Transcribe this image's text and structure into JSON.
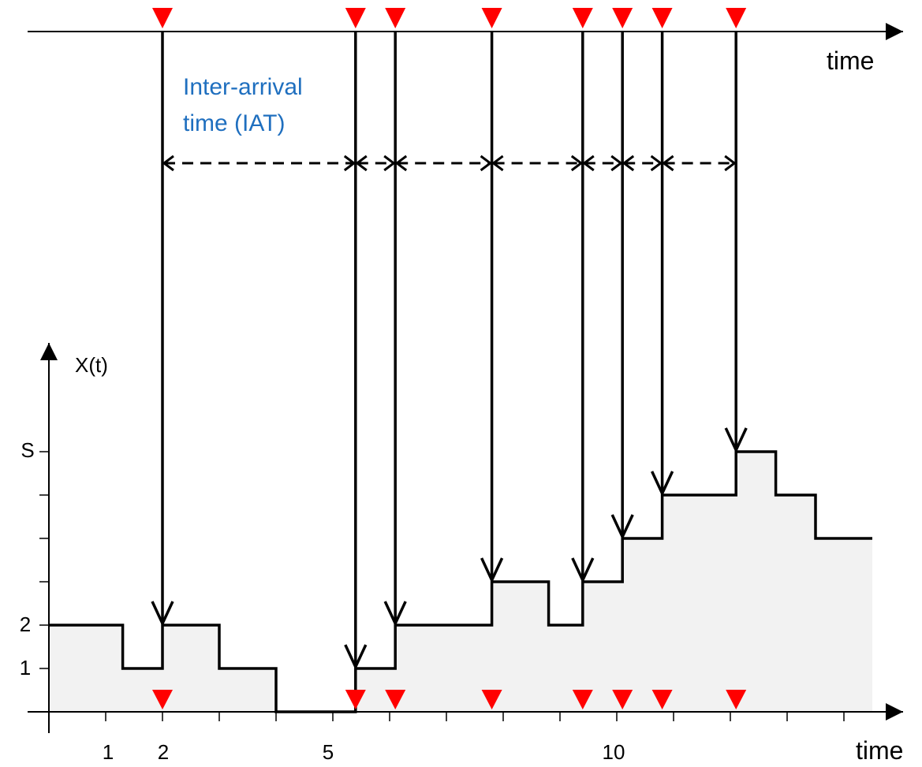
{
  "colors": {
    "marker": "#ff0000",
    "area_fill": "#f2f2f2",
    "annotation": "#1f6fbf",
    "line": "#000000"
  },
  "top_axis": {
    "label": "time"
  },
  "bottom_axis": {
    "label": "time",
    "tick_labels": [
      "1",
      "2",
      "5",
      "10"
    ]
  },
  "y_axis": {
    "label": "X(t)",
    "tick_labels": [
      "1",
      "2",
      "S"
    ]
  },
  "annotation": {
    "line1": "Inter-arrival",
    "line2": "time (IAT)"
  },
  "chart_data": {
    "type": "step",
    "arrival_times": [
      2.0,
      5.4,
      6.1,
      7.8,
      9.4,
      10.1,
      10.8,
      12.1
    ],
    "step_x": [
      0,
      1.3,
      2.0,
      3.0,
      4.0,
      5.4,
      6.1,
      7.8,
      8.8,
      9.4,
      10.1,
      10.8,
      12.1,
      12.8,
      13.5,
      14.5
    ],
    "step_y": [
      2,
      1,
      2,
      1,
      0,
      1,
      2,
      3,
      2,
      3,
      4,
      5,
      6,
      5,
      4,
      4
    ],
    "xlim": [
      0,
      14.5
    ],
    "ylim": [
      0,
      6
    ],
    "y_named_ticks": {
      "1": "1",
      "2": "2",
      "6": "S"
    }
  }
}
